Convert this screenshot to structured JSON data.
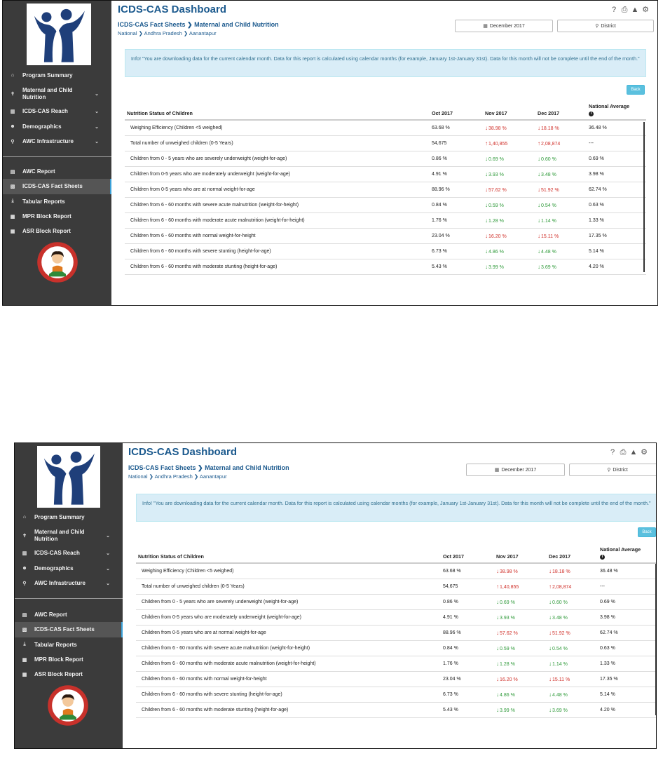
{
  "app": {
    "title": "ICDS-CAS Dashboard"
  },
  "icons": {
    "help": "help-icon",
    "print": "print-icon",
    "alert": "alert-icon",
    "settings": "gear-icon"
  },
  "sidebar": {
    "items": [
      {
        "label": "Program Summary",
        "icon": "home-icon"
      },
      {
        "label": "Maternal and Child Nutrition",
        "icon": "child-icon",
        "expandable": true
      },
      {
        "label": "ICDS-CAS Reach",
        "icon": "chart-icon",
        "expandable": true
      },
      {
        "label": "Demographics",
        "icon": "group-icon",
        "expandable": true
      },
      {
        "label": "AWC Infrastructure",
        "icon": "pin-icon",
        "expandable": true
      }
    ],
    "reports": [
      {
        "label": "AWC Report",
        "icon": "report-icon"
      },
      {
        "label": "ICDS-CAS Fact Sheets",
        "icon": "document-icon",
        "active": true
      },
      {
        "label": "Tabular Reports",
        "icon": "download-icon"
      },
      {
        "label": "MPR Block Report",
        "icon": "grid-icon"
      },
      {
        "label": "ASR Block Report",
        "icon": "grid-icon"
      }
    ],
    "colors": {
      "background": "#3b3b3b",
      "active": "#555555",
      "active_border": "#3aa0d8"
    }
  },
  "breadcrumb": {
    "section": "ICDS-CAS Fact Sheets",
    "separator": "❯",
    "page": "Maternal and Child Nutrition",
    "location": [
      "National",
      "Andhra Pradesh",
      "Aanantapur"
    ]
  },
  "filters": {
    "date": "December 2017",
    "location": "District"
  },
  "info": {
    "label": "Info!",
    "message": "\"You are downloading data for the current calendar month. Data for this report is calculated using calendar months (for example, January 1st-January 31st). Data for this month will not be complete until the end of the month.\""
  },
  "back_button": "Back",
  "table": {
    "headers": {
      "label": "Nutrition Status of Children",
      "oct": "Oct 2017",
      "nov": "Nov 2017",
      "dec": "Dec 2017",
      "national": "National Average"
    },
    "rows": [
      {
        "label": "Weighing Efficiency (Children <5 weighed)",
        "oct": "63.68 %",
        "nov": "38.98 %",
        "nov_dir": "down-red",
        "dec": "18.18 %",
        "dec_dir": "down-red",
        "national": "36.48 %"
      },
      {
        "label": "Total number of unweighed children (0-5 Years)",
        "oct": "54,675",
        "nov": "1,40,855",
        "nov_dir": "up-red",
        "dec": "2,08,874",
        "dec_dir": "up-red",
        "national": "---"
      },
      {
        "label": "Children from 0 - 5 years who are severely underweight (weight-for-age)",
        "oct": "0.86 %",
        "nov": "0.69 %",
        "nov_dir": "down-green",
        "dec": "0.60 %",
        "dec_dir": "down-green",
        "national": "0.69 %"
      },
      {
        "label": "Children from 0-5 years who are moderately underweight (weight-for-age)",
        "oct": "4.91 %",
        "nov": "3.93 %",
        "nov_dir": "down-green",
        "dec": "3.48 %",
        "dec_dir": "down-green",
        "national": "3.98 %"
      },
      {
        "label": "Children from 0-5 years who are at normal weight-for-age",
        "oct": "88.96 %",
        "nov": "57.62 %",
        "nov_dir": "down-red",
        "dec": "51.92 %",
        "dec_dir": "down-red",
        "national": "62.74 %"
      },
      {
        "label": "Children from 6 - 60 months with severe acute malnutrition (weight-for-height)",
        "oct": "0.84 %",
        "nov": "0.59 %",
        "nov_dir": "down-green",
        "dec": "0.54 %",
        "dec_dir": "down-green",
        "national": "0.63 %"
      },
      {
        "label": "Children from 6 - 60 months with moderate acute malnutrition (weight-for-height)",
        "oct": "1.76 %",
        "nov": "1.28 %",
        "nov_dir": "down-green",
        "dec": "1.14 %",
        "dec_dir": "down-green",
        "national": "1.33 %"
      },
      {
        "label": "Children from 6 - 60 months with normal weight-for-height",
        "oct": "23.04 %",
        "nov": "16.20 %",
        "nov_dir": "down-red",
        "dec": "15.11 %",
        "dec_dir": "down-red",
        "national": "17.35 %"
      },
      {
        "label": "Children from 6 - 60 months with severe stunting (height-for-age)",
        "oct": "6.73 %",
        "nov": "4.86 %",
        "nov_dir": "down-green",
        "dec": "4.48 %",
        "dec_dir": "down-green",
        "national": "5.14 %"
      },
      {
        "label": "Children from 6 - 60 months with moderate stunting (height-for-age)",
        "oct": "5.43 %",
        "nov": "3.99 %",
        "nov_dir": "down-green",
        "dec": "3.69 %",
        "dec_dir": "down-green",
        "national": "4.20 %"
      }
    ]
  }
}
